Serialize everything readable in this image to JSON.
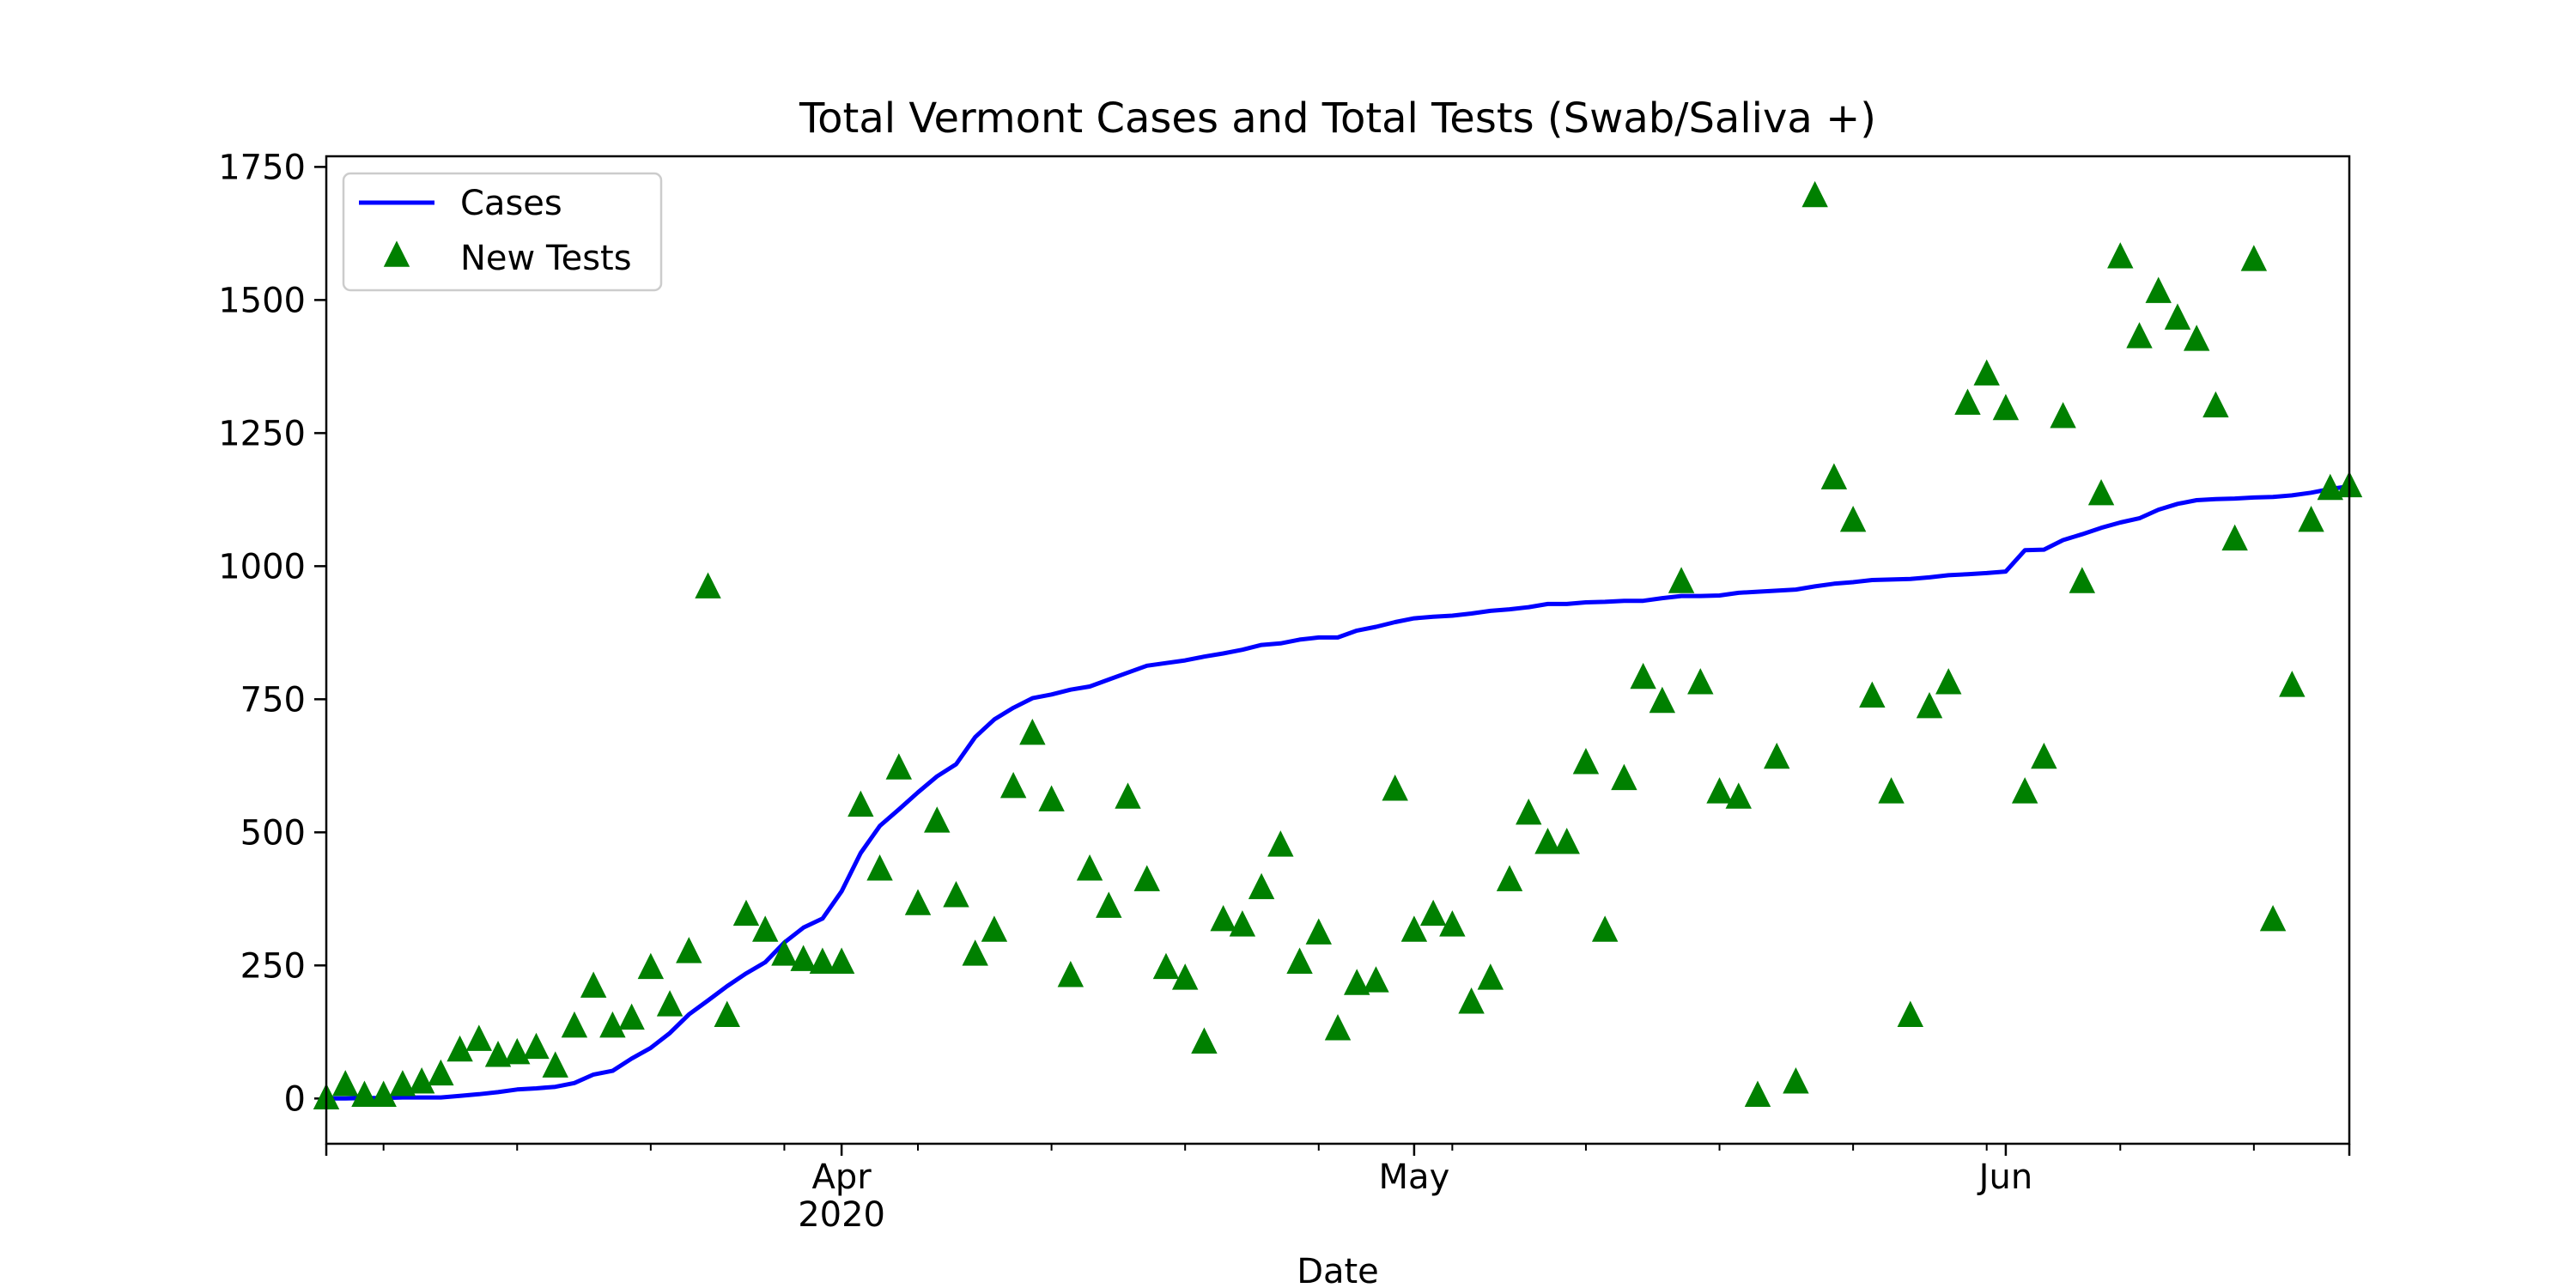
{
  "chart_data": {
    "type": "line",
    "title": "Total Vermont Cases and Total Tests (Swab/Saliva +)",
    "xlabel": "Date",
    "ylabel": "",
    "x_type": "date",
    "xlim": [
      "2020-03-05",
      "2020-06-19"
    ],
    "ylim": [
      -85,
      1770
    ],
    "y_ticks": [
      0,
      250,
      500,
      750,
      1000,
      1250,
      1500,
      1750
    ],
    "x_major_ticks": [
      {
        "date": "2020-04-01",
        "label": "Apr",
        "sublabel": "2020"
      },
      {
        "date": "2020-05-01",
        "label": "May",
        "sublabel": ""
      },
      {
        "date": "2020-06-01",
        "label": "Jun",
        "sublabel": ""
      }
    ],
    "x_minor_ticks": [
      "2020-03-08",
      "2020-03-15",
      "2020-03-22",
      "2020-03-29",
      "2020-04-05",
      "2020-04-12",
      "2020-04-19",
      "2020-04-26",
      "2020-05-03",
      "2020-05-10",
      "2020-05-17",
      "2020-05-24",
      "2020-05-31",
      "2020-06-07",
      "2020-06-14"
    ],
    "grid": false,
    "legend": {
      "position": "top-left",
      "entries": [
        "Cases",
        "New Tests"
      ]
    },
    "colors": {
      "cases": "#0000ff",
      "tests": "#008000"
    },
    "series": [
      {
        "name": "Cases",
        "style": "line",
        "color": "#0000ff",
        "x": [
          "2020-03-05",
          "2020-03-06",
          "2020-03-07",
          "2020-03-08",
          "2020-03-09",
          "2020-03-10",
          "2020-03-11",
          "2020-03-12",
          "2020-03-13",
          "2020-03-14",
          "2020-03-15",
          "2020-03-16",
          "2020-03-17",
          "2020-03-18",
          "2020-03-19",
          "2020-03-20",
          "2020-03-21",
          "2020-03-22",
          "2020-03-23",
          "2020-03-24",
          "2020-03-25",
          "2020-03-26",
          "2020-03-27",
          "2020-03-28",
          "2020-03-29",
          "2020-03-30",
          "2020-03-31",
          "2020-04-01",
          "2020-04-02",
          "2020-04-03",
          "2020-04-04",
          "2020-04-05",
          "2020-04-06",
          "2020-04-07",
          "2020-04-08",
          "2020-04-09",
          "2020-04-10",
          "2020-04-11",
          "2020-04-12",
          "2020-04-13",
          "2020-04-14",
          "2020-04-15",
          "2020-04-16",
          "2020-04-17",
          "2020-04-18",
          "2020-04-19",
          "2020-04-20",
          "2020-04-21",
          "2020-04-22",
          "2020-04-23",
          "2020-04-24",
          "2020-04-25",
          "2020-04-26",
          "2020-04-27",
          "2020-04-28",
          "2020-04-29",
          "2020-04-30",
          "2020-05-01",
          "2020-05-02",
          "2020-05-03",
          "2020-05-04",
          "2020-05-05",
          "2020-05-06",
          "2020-05-07",
          "2020-05-08",
          "2020-05-09",
          "2020-05-10",
          "2020-05-11",
          "2020-05-12",
          "2020-05-13",
          "2020-05-14",
          "2020-05-15",
          "2020-05-16",
          "2020-05-17",
          "2020-05-18",
          "2020-05-19",
          "2020-05-20",
          "2020-05-21",
          "2020-05-22",
          "2020-05-23",
          "2020-05-24",
          "2020-05-25",
          "2020-05-26",
          "2020-05-27",
          "2020-05-28",
          "2020-05-29",
          "2020-05-30",
          "2020-05-31",
          "2020-06-01",
          "2020-06-02",
          "2020-06-03",
          "2020-06-04",
          "2020-06-05",
          "2020-06-06",
          "2020-06-07",
          "2020-06-08",
          "2020-06-09",
          "2020-06-10",
          "2020-06-11",
          "2020-06-12",
          "2020-06-13",
          "2020-06-14",
          "2020-06-15",
          "2020-06-16",
          "2020-06-17",
          "2020-06-18",
          "2020-06-19"
        ],
        "values": [
          0,
          0,
          1,
          1,
          2,
          2,
          2,
          5,
          8,
          12,
          17,
          19,
          22,
          29,
          45,
          52,
          75,
          95,
          123,
          158,
          184,
          211,
          235,
          256,
          293,
          321,
          338,
          389,
          461,
          512,
          543,
          575,
          605,
          628,
          679,
          712,
          734,
          752,
          759,
          768,
          774,
          787,
          800,
          813,
          818,
          823,
          830,
          836,
          843,
          852,
          855,
          862,
          866,
          866,
          879,
          886,
          895,
          902,
          905,
          907,
          911,
          916,
          919,
          923,
          929,
          929,
          932,
          933,
          935,
          935,
          940,
          944,
          944,
          945,
          950,
          952,
          954,
          956,
          962,
          967,
          970,
          974,
          975,
          976,
          979,
          983,
          985,
          987,
          990,
          1030,
          1031,
          1049,
          1060,
          1072,
          1082,
          1090,
          1106,
          1117,
          1124,
          1126,
          1127,
          1129,
          1130,
          1133,
          1138,
          1145,
          1150
        ]
      },
      {
        "name": "New Tests",
        "style": "marker-triangle",
        "color": "#008000",
        "x": [
          "2020-03-05",
          "2020-03-06",
          "2020-03-07",
          "2020-03-08",
          "2020-03-09",
          "2020-03-10",
          "2020-03-11",
          "2020-03-12",
          "2020-03-13",
          "2020-03-14",
          "2020-03-15",
          "2020-03-16",
          "2020-03-17",
          "2020-03-18",
          "2020-03-19",
          "2020-03-20",
          "2020-03-21",
          "2020-03-22",
          "2020-03-23",
          "2020-03-24",
          "2020-03-25",
          "2020-03-26",
          "2020-03-27",
          "2020-03-28",
          "2020-03-29",
          "2020-03-30",
          "2020-03-31",
          "2020-04-01",
          "2020-04-02",
          "2020-04-03",
          "2020-04-04",
          "2020-04-05",
          "2020-04-06",
          "2020-04-07",
          "2020-04-08",
          "2020-04-09",
          "2020-04-10",
          "2020-04-11",
          "2020-04-12",
          "2020-04-13",
          "2020-04-14",
          "2020-04-15",
          "2020-04-16",
          "2020-04-17",
          "2020-04-18",
          "2020-04-19",
          "2020-04-20",
          "2020-04-21",
          "2020-04-22",
          "2020-04-23",
          "2020-04-24",
          "2020-04-25",
          "2020-04-26",
          "2020-04-27",
          "2020-04-28",
          "2020-04-29",
          "2020-04-30",
          "2020-05-01",
          "2020-05-02",
          "2020-05-03",
          "2020-05-04",
          "2020-05-05",
          "2020-05-06",
          "2020-05-07",
          "2020-05-08",
          "2020-05-09",
          "2020-05-10",
          "2020-05-11",
          "2020-05-12",
          "2020-05-13",
          "2020-05-14",
          "2020-05-15",
          "2020-05-16",
          "2020-05-17",
          "2020-05-18",
          "2020-05-19",
          "2020-05-20",
          "2020-05-21",
          "2020-05-22",
          "2020-05-23",
          "2020-05-24",
          "2020-05-25",
          "2020-05-26",
          "2020-05-27",
          "2020-05-28",
          "2020-05-29",
          "2020-05-30",
          "2020-05-31",
          "2020-06-01",
          "2020-06-02",
          "2020-06-03",
          "2020-06-04",
          "2020-06-05",
          "2020-06-06",
          "2020-06-07",
          "2020-06-08",
          "2020-06-09",
          "2020-06-10",
          "2020-06-11",
          "2020-06-12",
          "2020-06-13",
          "2020-06-14",
          "2020-06-15",
          "2020-06-16",
          "2020-06-17",
          "2020-06-18",
          "2020-06-19"
        ],
        "values": [
          0,
          25,
          5,
          5,
          25,
          30,
          45,
          90,
          110,
          80,
          85,
          95,
          60,
          135,
          210,
          135,
          150,
          245,
          175,
          275,
          960,
          155,
          345,
          315,
          270,
          260,
          255,
          255,
          550,
          430,
          620,
          365,
          520,
          380,
          270,
          315,
          585,
          685,
          560,
          230,
          430,
          360,
          565,
          410,
          245,
          225,
          105,
          335,
          325,
          395,
          475,
          255,
          310,
          130,
          215,
          220,
          580,
          315,
          345,
          325,
          180,
          225,
          410,
          535,
          480,
          480,
          630,
          315,
          600,
          790,
          745,
          970,
          780,
          575,
          565,
          5,
          640,
          30,
          1695,
          1165,
          1085,
          755,
          575,
          155,
          735,
          780,
          1305,
          1360,
          1295,
          575,
          640,
          1280,
          970,
          1135,
          1580,
          1430,
          1515,
          1465,
          1425,
          1300,
          1050,
          1575,
          335,
          775,
          1085,
          1145,
          1150
        ]
      }
    ]
  }
}
